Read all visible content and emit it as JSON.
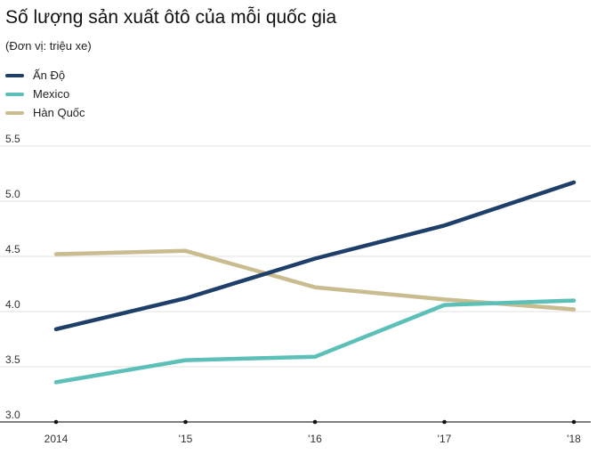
{
  "title": "Số lượng sản xuất ôtô của mỗi quốc gia",
  "subtitle": "(Đơn vị: triệu xe)",
  "chart_data": {
    "type": "line",
    "title": "Số lượng sản xuất ôtô của mỗi quốc gia",
    "subtitle": "(Đơn vị: triệu xe)",
    "xlabel": "",
    "ylabel": "",
    "x": [
      "2014",
      "'15",
      "'16",
      "'17",
      "'18"
    ],
    "y_ticks": [
      "3.0",
      "3.5",
      "4.0",
      "4.5",
      "5.0",
      "5.5"
    ],
    "ylim": [
      3.0,
      5.5
    ],
    "grid": true,
    "legend_position": "top-left",
    "series": [
      {
        "name": "Ấn Độ",
        "color": "#1f3f6b",
        "values": [
          3.84,
          4.12,
          4.48,
          4.78,
          5.17
        ]
      },
      {
        "name": "Mexico",
        "color": "#5cbfb8",
        "values": [
          3.36,
          3.56,
          3.59,
          4.06,
          4.1
        ]
      },
      {
        "name": "Hàn Quốc",
        "color": "#c9bc8f",
        "values": [
          4.52,
          4.55,
          4.22,
          4.11,
          4.02
        ]
      }
    ]
  }
}
